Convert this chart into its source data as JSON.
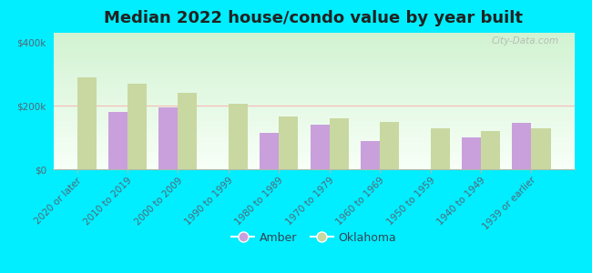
{
  "title": "Median 2022 house/condo value by year built",
  "categories": [
    "2020 or later",
    "2010 to 2019",
    "2000 to 2009",
    "1990 to 1999",
    "1980 to 1989",
    "1970 to 1979",
    "1960 to 1969",
    "1950 to 1959",
    "1940 to 1949",
    "1939 or earlier"
  ],
  "amber_values": [
    null,
    180000,
    195000,
    null,
    115000,
    140000,
    90000,
    null,
    100000,
    145000
  ],
  "oklahoma_values": [
    290000,
    270000,
    240000,
    205000,
    165000,
    160000,
    150000,
    130000,
    120000,
    130000
  ],
  "amber_color": "#c9a0dc",
  "oklahoma_color": "#c8d8a0",
  "background_outer": "#00eeff",
  "yticks": [
    0,
    200000,
    400000
  ],
  "ytick_labels": [
    "$0",
    "$200k",
    "$400k"
  ],
  "ylim": [
    0,
    430000
  ],
  "legend_amber": "Amber",
  "legend_oklahoma": "Oklahoma",
  "title_fontsize": 13,
  "tick_fontsize": 7.5,
  "watermark": "City-Data.com"
}
